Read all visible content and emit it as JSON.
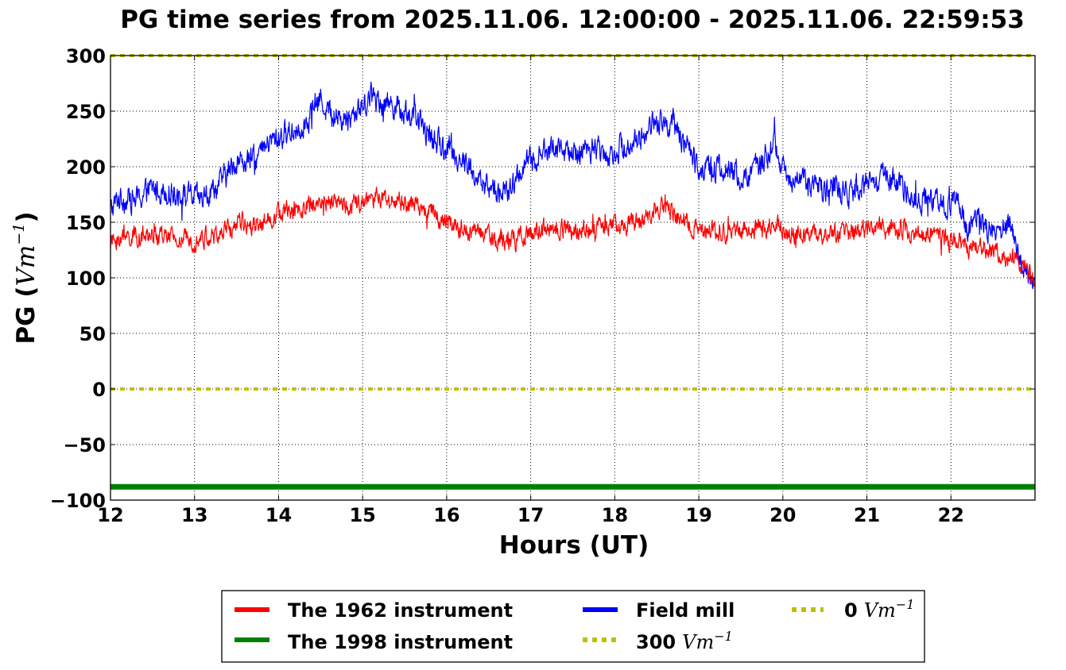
{
  "chart_data": {
    "type": "line",
    "title": "PG time series from 2025.11.06. 12:00:00 - 2025.11.06. 22:59:53",
    "xlabel": "Hours (UT)",
    "ylabel": {
      "prefix": "PG (",
      "unit": "Vm",
      "exponent": "−1",
      "suffix": ")"
    },
    "xlim": [
      12,
      23
    ],
    "ylim": [
      -100,
      300
    ],
    "xticks": [
      12,
      13,
      14,
      15,
      16,
      17,
      18,
      19,
      20,
      21,
      22
    ],
    "xtick_labels": [
      "12",
      "13",
      "14",
      "15",
      "16",
      "17",
      "18",
      "19",
      "20",
      "21",
      "22"
    ],
    "yticks": [
      -100,
      -50,
      0,
      50,
      100,
      150,
      200,
      250,
      300
    ],
    "ytick_labels": [
      "−100",
      "−50",
      "0",
      "50",
      "100",
      "150",
      "200",
      "250",
      "300"
    ],
    "grid": true,
    "legend_position": "bottom-center",
    "series": [
      {
        "name": "The 1962 instrument",
        "color": "#ff0000",
        "style": "solid",
        "noise": 7,
        "x": [
          12.0,
          12.1,
          12.3,
          12.5,
          12.8,
          13.0,
          13.3,
          13.5,
          13.8,
          14.0,
          14.3,
          14.5,
          14.8,
          15.0,
          15.2,
          15.5,
          15.8,
          16.0,
          16.3,
          16.6,
          16.8,
          17.0,
          17.2,
          17.5,
          17.8,
          18.0,
          18.3,
          18.5,
          18.6,
          18.8,
          19.0,
          19.3,
          19.5,
          19.8,
          19.9,
          20.0,
          20.3,
          20.5,
          20.8,
          21.0,
          21.3,
          21.5,
          21.8,
          22.0,
          22.1,
          22.2,
          22.4,
          22.6,
          22.8,
          23.0
        ],
        "y": [
          132,
          135,
          137,
          138,
          134,
          135,
          138,
          148,
          150,
          158,
          162,
          170,
          165,
          167,
          172,
          167,
          160,
          150,
          142,
          135,
          133,
          140,
          145,
          142,
          145,
          147,
          150,
          162,
          163,
          150,
          145,
          142,
          140,
          145,
          150,
          143,
          140,
          138,
          140,
          143,
          145,
          142,
          138,
          132,
          130,
          125,
          128,
          122,
          115,
          100
        ]
      },
      {
        "name": "Field mill",
        "color": "#0000ff",
        "style": "solid",
        "noise": 9,
        "x": [
          12.0,
          12.1,
          12.3,
          12.5,
          12.7,
          12.9,
          13.1,
          13.3,
          13.5,
          13.7,
          13.9,
          14.1,
          14.3,
          14.5,
          14.6,
          14.8,
          15.0,
          15.1,
          15.2,
          15.4,
          15.6,
          15.8,
          16.0,
          16.2,
          16.4,
          16.6,
          16.75,
          16.9,
          17.1,
          17.3,
          17.5,
          17.7,
          17.9,
          18.1,
          18.3,
          18.5,
          18.7,
          18.8,
          19.0,
          19.2,
          19.4,
          19.6,
          19.8,
          19.9,
          20.0,
          20.2,
          20.4,
          20.6,
          20.8,
          21.0,
          21.2,
          21.4,
          21.6,
          21.8,
          22.0,
          22.1,
          22.2,
          22.3,
          22.5,
          22.7,
          22.8,
          23.0
        ],
        "y": [
          160,
          172,
          170,
          180,
          178,
          174,
          170,
          185,
          205,
          205,
          222,
          230,
          238,
          262,
          248,
          242,
          255,
          265,
          260,
          255,
          245,
          228,
          215,
          205,
          185,
          178,
          176,
          200,
          210,
          218,
          210,
          218,
          212,
          218,
          225,
          242,
          238,
          225,
          200,
          198,
          195,
          188,
          210,
          222,
          195,
          188,
          180,
          182,
          175,
          185,
          190,
          185,
          170,
          165,
          168,
          175,
          140,
          155,
          140,
          148,
          118,
          95
        ]
      },
      {
        "name": "The 1998 instrument",
        "color": "#008000",
        "style": "solid",
        "x": [
          12.0,
          23.0
        ],
        "y": [
          -88,
          -88
        ]
      },
      {
        "name": "300 Vm⁻¹",
        "color": "#bfbf00",
        "style": "dotted",
        "x": [
          12.0,
          23.0
        ],
        "y": [
          300,
          300
        ]
      },
      {
        "name": "0 Vm⁻¹",
        "color": "#bfbf00",
        "style": "dotted",
        "x": [
          12.0,
          23.0
        ],
        "y": [
          0,
          0
        ]
      }
    ],
    "legend": {
      "columns": [
        [
          {
            "series": "The 1962 instrument",
            "text": "The 1962 instrument"
          },
          {
            "series": "The 1998 instrument",
            "text": "The 1998 instrument"
          }
        ],
        [
          {
            "series": "Field mill",
            "text": "Field mill"
          },
          {
            "series": "300 Vm⁻¹",
            "value": "300",
            "unit": "Vm",
            "exponent": "−1"
          }
        ],
        [
          {
            "series": "0 Vm⁻¹",
            "value": "0",
            "unit": "Vm",
            "exponent": "−1"
          }
        ]
      ]
    }
  }
}
